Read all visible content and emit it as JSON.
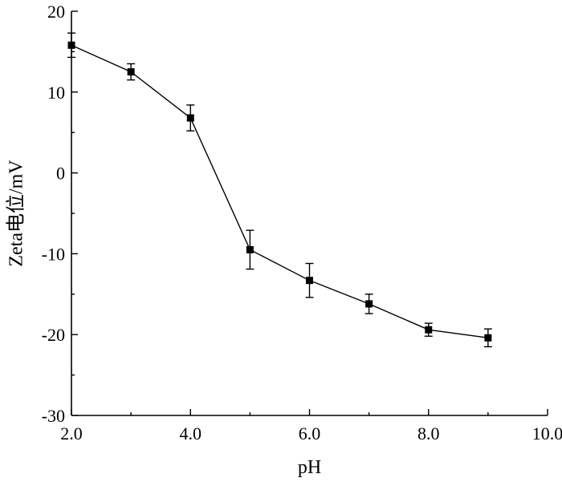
{
  "chart_data": {
    "type": "line",
    "title": "",
    "xlabel": "pH",
    "ylabel": "Zeta电位/mV",
    "xlim": [
      2.0,
      10.0
    ],
    "ylim": [
      -30,
      20
    ],
    "x_ticks": [
      2.0,
      4.0,
      6.0,
      8.0,
      10.0
    ],
    "x_tick_labels": [
      "2.0",
      "4.0",
      "6.0",
      "8.0",
      "10.0"
    ],
    "y_ticks": [
      -30,
      -20,
      -10,
      0,
      10,
      20
    ],
    "y_tick_labels": [
      "-30",
      "-20",
      "-10",
      "0",
      "10",
      "20"
    ],
    "grid": false,
    "legend": "none",
    "marker": "square",
    "color": "#000000",
    "series": [
      {
        "x": [
          2,
          3,
          4,
          5,
          6,
          7,
          8,
          9
        ],
        "y": [
          15.8,
          12.5,
          6.8,
          -9.5,
          -13.3,
          -16.2,
          -19.4,
          -20.4
        ],
        "error": [
          1.5,
          1.0,
          1.6,
          2.4,
          2.1,
          1.2,
          0.8,
          1.1
        ]
      }
    ]
  }
}
